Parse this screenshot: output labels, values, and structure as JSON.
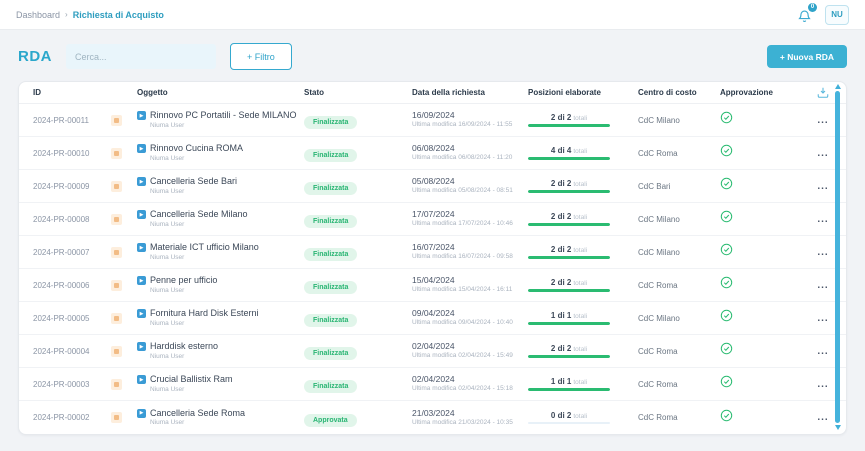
{
  "colors": {
    "accent": "#3cb1d3",
    "green": "#2abb71",
    "status_bg": "#e1f5ea"
  },
  "topbar": {
    "breadcrumb_root": "Dashboard",
    "breadcrumb_sep": "›",
    "breadcrumb_current": "Richiesta di Acquisto",
    "bell_badge": "0",
    "avatar_initials": "NU"
  },
  "header": {
    "title": "RDA",
    "search_placeholder": "Cerca...",
    "filter_label": "+ Filtro",
    "new_rda_label": "+  Nuova RDA"
  },
  "table": {
    "columns": {
      "id": "ID",
      "oggetto": "Oggetto",
      "stato": "Stato",
      "data": "Data della richiesta",
      "posizioni": "Posizioni elaborate",
      "centro": "Centro di costo",
      "approvazione": "Approvazione"
    },
    "progress_suffix": "totali",
    "menu_glyph": "...",
    "rows": [
      {
        "id": "2024-PR-00011",
        "subject": "Rinnovo PC Portatili - Sede MILANO",
        "user": "Niuma User",
        "status": "Finalizzata",
        "date": "16/09/2024",
        "modified": "Ultima modifica 16/09/2024 - 11:55",
        "progress": "2 di 2",
        "progress_pct": 100,
        "cost_center": "CdC Milano"
      },
      {
        "id": "2024-PR-00010",
        "subject": "Rinnovo Cucina ROMA",
        "user": "Niuma User",
        "status": "Finalizzata",
        "date": "06/08/2024",
        "modified": "Ultima modifica 06/08/2024 - 11:20",
        "progress": "4 di 4",
        "progress_pct": 100,
        "cost_center": "CdC Roma"
      },
      {
        "id": "2024-PR-00009",
        "subject": "Cancelleria Sede Bari",
        "user": "Niuma User",
        "status": "Finalizzata",
        "date": "05/08/2024",
        "modified": "Ultima modifica 05/08/2024 - 08:51",
        "progress": "2 di 2",
        "progress_pct": 100,
        "cost_center": "CdC Bari"
      },
      {
        "id": "2024-PR-00008",
        "subject": "Cancelleria Sede Milano",
        "user": "Niuma User",
        "status": "Finalizzata",
        "date": "17/07/2024",
        "modified": "Ultima modifica 17/07/2024 - 10:46",
        "progress": "2 di 2",
        "progress_pct": 100,
        "cost_center": "CdC Milano"
      },
      {
        "id": "2024-PR-00007",
        "subject": "Materiale ICT ufficio Milano",
        "user": "Niuma User",
        "status": "Finalizzata",
        "date": "16/07/2024",
        "modified": "Ultima modifica 16/07/2024 - 09:58",
        "progress": "2 di 2",
        "progress_pct": 100,
        "cost_center": "CdC Milano"
      },
      {
        "id": "2024-PR-00006",
        "subject": "Penne per ufficio",
        "user": "Niuma User",
        "status": "Finalizzata",
        "date": "15/04/2024",
        "modified": "Ultima modifica 15/04/2024 - 16:11",
        "progress": "2 di 2",
        "progress_pct": 100,
        "cost_center": "CdC Roma"
      },
      {
        "id": "2024-PR-00005",
        "subject": "Fornitura Hard Disk Esterni",
        "user": "Niuma User",
        "status": "Finalizzata",
        "date": "09/04/2024",
        "modified": "Ultima modifica 09/04/2024 - 10:40",
        "progress": "1 di 1",
        "progress_pct": 100,
        "cost_center": "CdC Milano"
      },
      {
        "id": "2024-PR-00004",
        "subject": "Harddisk esterno",
        "user": "Niuma User",
        "status": "Finalizzata",
        "date": "02/04/2024",
        "modified": "Ultima modifica 02/04/2024 - 15:49",
        "progress": "2 di 2",
        "progress_pct": 100,
        "cost_center": "CdC Roma"
      },
      {
        "id": "2024-PR-00003",
        "subject": "Crucial Ballistix Ram",
        "user": "Niuma User",
        "status": "Finalizzata",
        "date": "02/04/2024",
        "modified": "Ultima modifica 02/04/2024 - 15:18",
        "progress": "1 di 1",
        "progress_pct": 100,
        "cost_center": "CdC Roma"
      },
      {
        "id": "2024-PR-00002",
        "subject": "Cancelleria Sede Roma",
        "user": "Niuma User",
        "status": "Approvata",
        "date": "21/03/2024",
        "modified": "Ultima modifica 21/03/2024 - 10:35",
        "progress": "0 di 2",
        "progress_pct": 0,
        "cost_center": "CdC Roma"
      }
    ]
  }
}
